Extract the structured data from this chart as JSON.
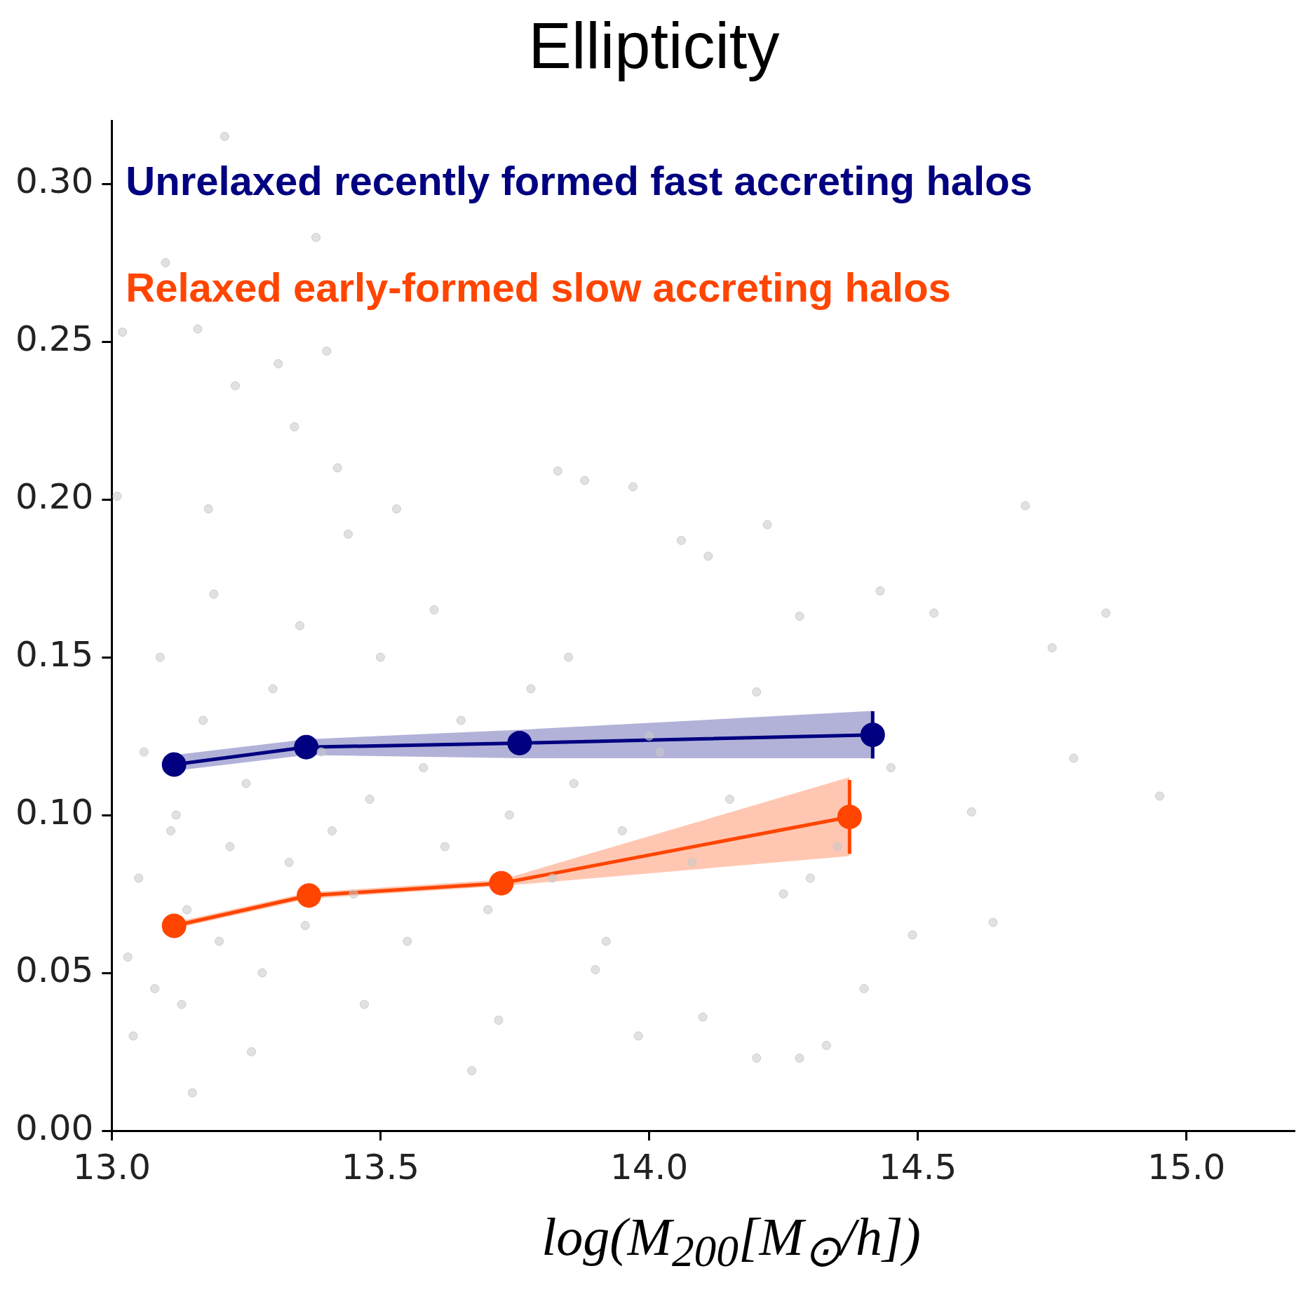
{
  "chart_data": {
    "type": "line",
    "title": "Ellipticity",
    "xlabel": "log(M$_{200}$[M$_{⊙}$/h])",
    "xlim": [
      13.0,
      15.2
    ],
    "ylim": [
      0,
      0.32
    ],
    "xticks": [
      {
        "value": 13.0,
        "label": "13.0"
      },
      {
        "value": 13.5,
        "label": "13.5"
      },
      {
        "value": 14.0,
        "label": "14.0"
      },
      {
        "value": 14.5,
        "label": "14.5"
      },
      {
        "value": 15.0,
        "label": "15.0"
      }
    ],
    "yticks": [
      {
        "value": 0,
        "label": "0.00"
      },
      {
        "value": 0.05,
        "label": "0.05"
      },
      {
        "value": 0.1,
        "label": "0.10"
      },
      {
        "value": 0.15,
        "label": "0.15"
      },
      {
        "value": 0.2,
        "label": "0.20"
      },
      {
        "value": 0.25,
        "label": "0.25"
      },
      {
        "value": 0.3,
        "label": "0.30"
      }
    ],
    "legend": "top left",
    "grid": false,
    "marker": "circle",
    "line_style": "solid",
    "series": [
      {
        "type": "scatter",
        "color": "#c8c8c8",
        "x": [
          13.21,
          13.38,
          14.7,
          13.97,
          13.88,
          14.85,
          14.75,
          14.79,
          14.95,
          14.6,
          14.64,
          14.49,
          14.4,
          14.33,
          14.28,
          14.2,
          13.15,
          13.67,
          13.9,
          14.1,
          13.98,
          14.53,
          14.43,
          14.28,
          14.2,
          14.11,
          14.06,
          14.22,
          13.83,
          13.53,
          13.44,
          13.34,
          13.31,
          13.4,
          13.23,
          13.02,
          13.1,
          13.16,
          13.42,
          13.18,
          13.01,
          13.03,
          13.05,
          13.08,
          13.12,
          13.14,
          13.17,
          13.2,
          13.22,
          13.25,
          13.28,
          13.3,
          13.33,
          13.36,
          13.39,
          13.41,
          13.45,
          13.48,
          13.5,
          13.55,
          13.58,
          13.62,
          13.65,
          13.7,
          13.74,
          13.78,
          13.82,
          13.86,
          13.92,
          13.95,
          14.02,
          14.08,
          14.15,
          14.25,
          14.35,
          14.45,
          13.04,
          13.09,
          13.13,
          13.19,
          13.26,
          13.35,
          13.47,
          13.6,
          13.72,
          13.85,
          14.0,
          14.3,
          13.06,
          13.11
        ],
        "values": [
          0.315,
          0.283,
          0.198,
          0.204,
          0.206,
          0.164,
          0.153,
          0.118,
          0.106,
          0.101,
          0.066,
          0.062,
          0.045,
          0.027,
          0.023,
          0.023,
          0.012,
          0.019,
          0.051,
          0.036,
          0.03,
          0.164,
          0.171,
          0.163,
          0.139,
          0.182,
          0.187,
          0.192,
          0.209,
          0.197,
          0.189,
          0.223,
          0.243,
          0.247,
          0.236,
          0.253,
          0.275,
          0.254,
          0.21,
          0.197,
          0.201,
          0.055,
          0.08,
          0.045,
          0.1,
          0.07,
          0.13,
          0.06,
          0.09,
          0.11,
          0.05,
          0.14,
          0.085,
          0.065,
          0.12,
          0.095,
          0.075,
          0.105,
          0.15,
          0.06,
          0.115,
          0.09,
          0.13,
          0.07,
          0.1,
          0.14,
          0.08,
          0.11,
          0.06,
          0.095,
          0.12,
          0.085,
          0.105,
          0.075,
          0.09,
          0.115,
          0.03,
          0.15,
          0.04,
          0.17,
          0.025,
          0.16,
          0.04,
          0.165,
          0.035,
          0.15,
          0.125,
          0.08,
          0.12,
          0.095
        ]
      },
      {
        "name": "Unrelaxed recently formed fast accreting halos",
        "color": "#000080",
        "x": [
          13.116,
          13.362,
          13.759,
          14.416
        ],
        "values": [
          0.116,
          0.1215,
          0.1228,
          0.1254
        ],
        "lower": [
          0.114,
          0.119,
          0.118,
          0.118
        ],
        "upper": [
          0.119,
          0.124,
          0.127,
          0.133
        ],
        "errors": [
          null,
          null,
          null,
          0.0075
        ]
      },
      {
        "name": "Relaxed early-formed slow accreting halos",
        "color": "#ff4500",
        "x": [
          13.116,
          13.367,
          13.725,
          14.373
        ],
        "values": [
          0.0649,
          0.0745,
          0.0784,
          0.0994
        ],
        "lower": [
          0.064,
          0.0735,
          0.0775,
          0.087
        ],
        "upper": [
          0.066,
          0.0755,
          0.0795,
          0.112
        ],
        "errors": [
          null,
          null,
          null,
          0.0117
        ]
      }
    ]
  }
}
